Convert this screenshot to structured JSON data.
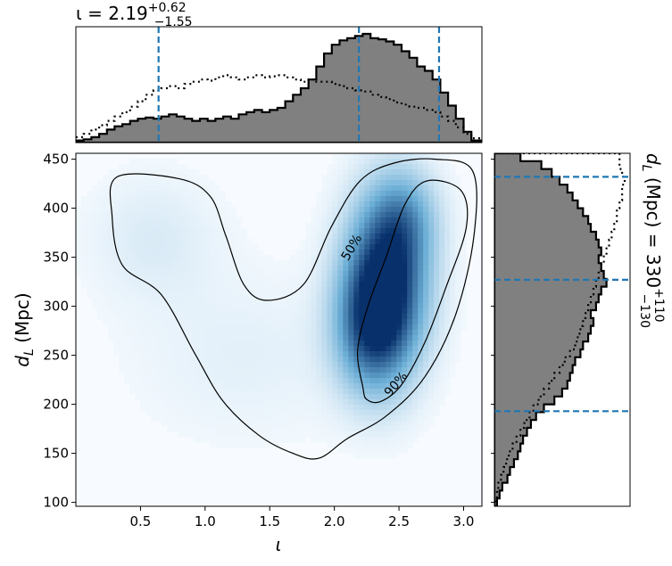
{
  "chart_data": [
    {
      "panel": "top-marginal",
      "type": "area",
      "title_prefix": "ι = 2.19",
      "title_sup": "+0.62",
      "title_sub": "−1.55",
      "xlim": [
        0.0,
        3.1416
      ],
      "quantiles": [
        0.64,
        2.19,
        2.81
      ],
      "bins_x": [
        0.0,
        0.06,
        0.12,
        0.18,
        0.24,
        0.3,
        0.36,
        0.42,
        0.48,
        0.54,
        0.6,
        0.66,
        0.72,
        0.78,
        0.84,
        0.9,
        0.96,
        1.02,
        1.08,
        1.14,
        1.2,
        1.26,
        1.32,
        1.38,
        1.44,
        1.5,
        1.56,
        1.62,
        1.68,
        1.74,
        1.8,
        1.86,
        1.92,
        1.98,
        2.04,
        2.1,
        2.16,
        2.22,
        2.28,
        2.34,
        2.4,
        2.46,
        2.52,
        2.58,
        2.64,
        2.7,
        2.76,
        2.82,
        2.88,
        2.94,
        3.0,
        3.06,
        3.14
      ],
      "hist_filled": [
        0.02,
        0.03,
        0.05,
        0.08,
        0.12,
        0.15,
        0.17,
        0.2,
        0.22,
        0.23,
        0.22,
        0.24,
        0.26,
        0.24,
        0.22,
        0.2,
        0.22,
        0.2,
        0.22,
        0.24,
        0.22,
        0.26,
        0.28,
        0.3,
        0.28,
        0.3,
        0.32,
        0.38,
        0.44,
        0.5,
        0.58,
        0.7,
        0.82,
        0.9,
        0.94,
        0.96,
        0.98,
        1.0,
        0.96,
        0.95,
        0.93,
        0.9,
        0.84,
        0.78,
        0.7,
        0.66,
        0.58,
        0.46,
        0.34,
        0.22,
        0.1,
        0.02
      ],
      "hist_prior": [
        0.05,
        0.08,
        0.12,
        0.16,
        0.2,
        0.24,
        0.28,
        0.33,
        0.38,
        0.44,
        0.48,
        0.5,
        0.52,
        0.5,
        0.54,
        0.56,
        0.58,
        0.57,
        0.6,
        0.62,
        0.6,
        0.58,
        0.6,
        0.62,
        0.6,
        0.61,
        0.62,
        0.6,
        0.58,
        0.56,
        0.58,
        0.56,
        0.56,
        0.54,
        0.52,
        0.5,
        0.48,
        0.47,
        0.44,
        0.42,
        0.4,
        0.37,
        0.35,
        0.33,
        0.32,
        0.3,
        0.28,
        0.24,
        0.2,
        0.14,
        0.08,
        0.04
      ]
    },
    {
      "panel": "joint-density",
      "type": "heatmap",
      "xlabel": "ι",
      "ylabel_italic": "d",
      "ylabel_sub": "L",
      "ylabel_rest": " (Mpc)",
      "xlim": [
        0.0,
        3.1416
      ],
      "ylim": [
        96,
        456
      ],
      "xticks": [
        "0.5",
        "1.0",
        "1.5",
        "2.0",
        "2.5",
        "3.0"
      ],
      "xtick_values": [
        0.5,
        1.0,
        1.5,
        2.0,
        2.5,
        3.0
      ],
      "yticks": [
        "100",
        "150",
        "200",
        "250",
        "300",
        "350",
        "400",
        "450"
      ],
      "ytick_values": [
        100,
        150,
        200,
        250,
        300,
        350,
        400,
        450
      ],
      "contour_labels": [
        "50%",
        "90%"
      ],
      "contour_50": [
        [
          2.22,
          218
        ],
        [
          2.18,
          255
        ],
        [
          2.26,
          300
        ],
        [
          2.4,
          350
        ],
        [
          2.55,
          405
        ],
        [
          2.72,
          428
        ],
        [
          2.98,
          418
        ],
        [
          3.02,
          380
        ],
        [
          2.86,
          318
        ],
        [
          2.7,
          263
        ],
        [
          2.52,
          220
        ],
        [
          2.36,
          203
        ],
        [
          2.25,
          205
        ]
      ],
      "contour_90": [
        [
          0.32,
          432
        ],
        [
          0.8,
          430
        ],
        [
          1.04,
          412
        ],
        [
          1.16,
          372
        ],
        [
          1.3,
          322
        ],
        [
          1.48,
          306
        ],
        [
          1.76,
          322
        ],
        [
          1.98,
          382
        ],
        [
          2.2,
          428
        ],
        [
          2.46,
          446
        ],
        [
          2.78,
          450
        ],
        [
          3.07,
          438
        ],
        [
          3.08,
          372
        ],
        [
          2.94,
          292
        ],
        [
          2.7,
          228
        ],
        [
          2.4,
          188
        ],
        [
          2.1,
          165
        ],
        [
          1.88,
          145
        ],
        [
          1.68,
          150
        ],
        [
          1.42,
          168
        ],
        [
          1.14,
          203
        ],
        [
          0.92,
          252
        ],
        [
          0.66,
          312
        ],
        [
          0.36,
          342
        ],
        [
          0.28,
          392
        ]
      ],
      "density_blobs": [
        {
          "x": 2.4,
          "y": 325,
          "sx": 0.22,
          "sy": 60,
          "w": 1.0
        },
        {
          "x": 2.28,
          "y": 275,
          "sx": 0.2,
          "sy": 45,
          "w": 0.55
        },
        {
          "x": 2.55,
          "y": 390,
          "sx": 0.18,
          "sy": 35,
          "w": 0.35
        },
        {
          "x": 0.6,
          "y": 370,
          "sx": 0.35,
          "sy": 45,
          "w": 0.1
        },
        {
          "x": 1.3,
          "y": 250,
          "sx": 0.6,
          "sy": 60,
          "w": 0.07
        }
      ]
    },
    {
      "panel": "right-marginal",
      "type": "area",
      "label_italic": "d",
      "label_sub": "L",
      "label_rest": " (Mpc) = 330",
      "label_sup": "+110",
      "label_subscript": "−130",
      "ylim": [
        96,
        456
      ],
      "quantiles": [
        193,
        327,
        432
      ],
      "bins_y": [
        96,
        104,
        112,
        120,
        128,
        136,
        144,
        152,
        160,
        168,
        176,
        184,
        192,
        200,
        208,
        216,
        224,
        232,
        240,
        248,
        256,
        264,
        272,
        280,
        288,
        296,
        304,
        312,
        320,
        328,
        336,
        344,
        352,
        360,
        368,
        376,
        384,
        392,
        400,
        408,
        416,
        424,
        432,
        440,
        448,
        456
      ],
      "hist_filled": [
        0.02,
        0.04,
        0.06,
        0.1,
        0.12,
        0.15,
        0.18,
        0.2,
        0.22,
        0.25,
        0.28,
        0.32,
        0.38,
        0.46,
        0.52,
        0.56,
        0.58,
        0.6,
        0.62,
        0.66,
        0.68,
        0.72,
        0.74,
        0.76,
        0.74,
        0.78,
        0.8,
        0.82,
        0.86,
        0.84,
        0.82,
        0.8,
        0.82,
        0.8,
        0.78,
        0.74,
        0.72,
        0.68,
        0.64,
        0.6,
        0.56,
        0.5,
        0.44,
        0.36,
        0.2
      ],
      "hist_prior": [
        0.01,
        0.02,
        0.03,
        0.05,
        0.07,
        0.09,
        0.11,
        0.14,
        0.17,
        0.2,
        0.23,
        0.27,
        0.3,
        0.34,
        0.38,
        0.42,
        0.46,
        0.5,
        0.54,
        0.58,
        0.62,
        0.64,
        0.66,
        0.68,
        0.7,
        0.72,
        0.74,
        0.76,
        0.78,
        0.8,
        0.82,
        0.84,
        0.86,
        0.88,
        0.9,
        0.92,
        0.94,
        0.94,
        0.96,
        0.98,
        0.98,
        1.0,
        0.98,
        0.96,
        0.96
      ]
    }
  ],
  "colors": {
    "filled_hist": "#808080",
    "outline": "#000000",
    "quantile_line": "#1f77b4",
    "cmap_low": "#f7fbff",
    "cmap_mid": "#6baed6",
    "cmap_high": "#08306b"
  }
}
